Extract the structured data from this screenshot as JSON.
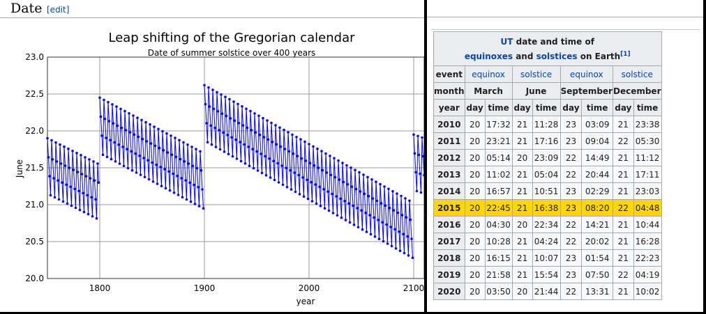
{
  "section": {
    "title": "Date",
    "edit": "[edit]"
  },
  "chart_data": {
    "type": "line",
    "title": "Leap shifting of the Gregorian calendar",
    "subtitle": "Date of summer solstice over 400 years",
    "xlabel": "year",
    "ylabel": "June",
    "xlim": [
      1750,
      2110
    ],
    "ylim": [
      20.0,
      23.0
    ],
    "x_ticks": [
      "1800",
      "1900",
      "2000",
      "2100"
    ],
    "y_ticks": [
      "20.0",
      "20.5",
      "21.0",
      "21.5",
      "22.0",
      "22.5",
      "23.0"
    ],
    "grid": true,
    "series": [
      {
        "color": "#0000ff",
        "segments": [
          {
            "start": 1750,
            "end": 1799,
            "top": 21.9,
            "bottom": 20.8
          },
          {
            "start": 1800,
            "end": 1899,
            "top": 22.45,
            "bottom": 20.95
          },
          {
            "start": 1900,
            "end": 2099,
            "top": 22.62,
            "bottom": 20.28
          },
          {
            "start": 2100,
            "end": 2110,
            "top": 21.95,
            "bottom": 21.15
          }
        ]
      }
    ]
  },
  "table": {
    "caption_line1": "UT",
    "caption_line1b": " date and time of",
    "caption_line2a": "equinoxes",
    "caption_line2b": " and ",
    "caption_line2c": "solstices",
    "caption_line2d": " on Earth",
    "caption_ref": "[1]",
    "event_label": "event",
    "events": [
      "equinox",
      "solstice",
      "equinox",
      "solstice"
    ],
    "month_label": "month",
    "months": [
      "March",
      "June",
      "September",
      "December"
    ],
    "year_label": "year",
    "day_label": "day",
    "time_label": "time",
    "highlight_color": "#ffd700",
    "rows": [
      {
        "year": "2010",
        "cells": [
          "20",
          "17:32",
          "21",
          "11:28",
          "23",
          "03:09",
          "21",
          "23:38"
        ]
      },
      {
        "year": "2011",
        "cells": [
          "20",
          "23:21",
          "21",
          "17:16",
          "23",
          "09:04",
          "22",
          "05:30"
        ]
      },
      {
        "year": "2012",
        "cells": [
          "20",
          "05:14",
          "20",
          "23:09",
          "22",
          "14:49",
          "21",
          "11:12"
        ]
      },
      {
        "year": "2013",
        "cells": [
          "20",
          "11:02",
          "21",
          "05:04",
          "22",
          "20:44",
          "21",
          "17:11"
        ]
      },
      {
        "year": "2014",
        "cells": [
          "20",
          "16:57",
          "21",
          "10:51",
          "23",
          "02:29",
          "21",
          "23:03"
        ]
      },
      {
        "year": "2015",
        "cells": [
          "20",
          "22:45",
          "21",
          "16:38",
          "23",
          "08:20",
          "22",
          "04:48"
        ],
        "highlight": true
      },
      {
        "year": "2016",
        "cells": [
          "20",
          "04:30",
          "20",
          "22:34",
          "22",
          "14:21",
          "21",
          "10:44"
        ]
      },
      {
        "year": "2017",
        "cells": [
          "20",
          "10:28",
          "21",
          "04:24",
          "22",
          "20:02",
          "21",
          "16:28"
        ]
      },
      {
        "year": "2018",
        "cells": [
          "20",
          "16:15",
          "21",
          "10:07",
          "23",
          "01:54",
          "21",
          "22:23"
        ]
      },
      {
        "year": "2019",
        "cells": [
          "20",
          "21:58",
          "21",
          "15:54",
          "23",
          "07:50",
          "22",
          "04:19"
        ]
      },
      {
        "year": "2020",
        "cells": [
          "20",
          "03:50",
          "20",
          "21:44",
          "22",
          "13:31",
          "21",
          "10:02"
        ]
      }
    ]
  }
}
